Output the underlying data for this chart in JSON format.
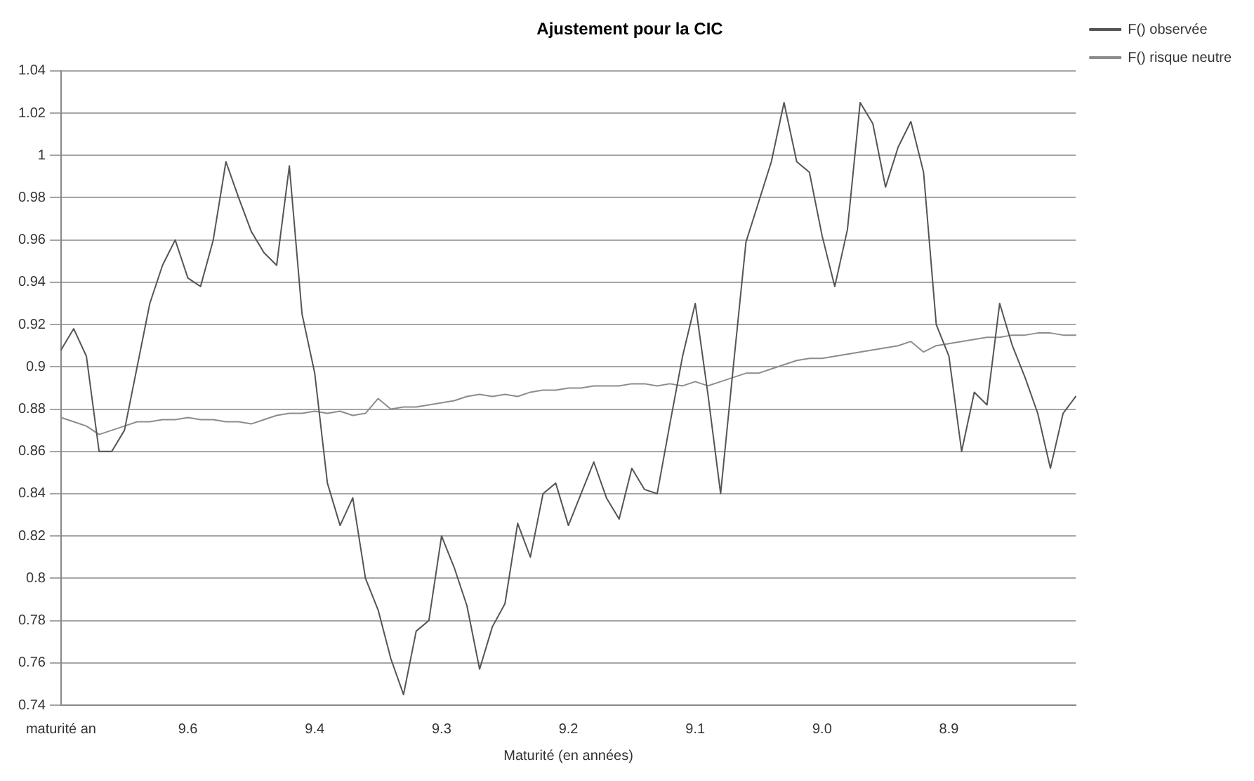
{
  "chart_data": {
    "type": "line",
    "title": "Ajustement pour la CIC",
    "xlabel": "Maturité (en années)",
    "categories": [
      "maturité an",
      null,
      null,
      null,
      null,
      null,
      null,
      null,
      null,
      null,
      "9.6",
      null,
      null,
      null,
      null,
      null,
      null,
      null,
      null,
      null,
      "9.4",
      null,
      null,
      null,
      null,
      null,
      null,
      null,
      null,
      null,
      "9.3",
      null,
      null,
      null,
      null,
      null,
      null,
      null,
      null,
      null,
      "9.2",
      null,
      null,
      null,
      null,
      null,
      null,
      null,
      null,
      null,
      "9.1",
      null,
      null,
      null,
      null,
      null,
      null,
      null,
      null,
      null,
      "9.0",
      null,
      null,
      null,
      null,
      null,
      null,
      null,
      null,
      null,
      "8.9",
      null,
      null,
      null,
      null,
      null,
      null,
      null,
      null,
      null,
      null
    ],
    "ylim": [
      0.74,
      1.04
    ],
    "yticks": [
      0.74,
      0.76,
      0.78,
      0.8,
      0.82,
      0.84,
      0.86,
      0.88,
      0.9,
      0.92,
      0.94,
      0.96,
      0.98,
      1,
      1.02,
      1.04
    ],
    "grid": "y",
    "legend": "top right",
    "marker": "none",
    "line_style": "solid",
    "series": [
      {
        "name": "F() observée",
        "color": "#555555",
        "values": [
          0.908,
          0.918,
          0.905,
          0.86,
          0.86,
          0.87,
          0.9,
          0.93,
          0.948,
          0.96,
          0.942,
          0.938,
          0.96,
          0.997,
          0.98,
          0.964,
          0.954,
          0.948,
          0.995,
          0.925,
          0.897,
          0.845,
          0.825,
          0.838,
          0.8,
          0.785,
          0.762,
          0.745,
          0.775,
          0.78,
          0.82,
          0.805,
          0.787,
          0.757,
          0.777,
          0.788,
          0.826,
          0.81,
          0.84,
          0.845,
          0.825,
          0.84,
          0.855,
          0.838,
          0.828,
          0.852,
          0.842,
          0.84,
          0.873,
          0.905,
          0.93,
          0.887,
          0.84,
          0.9,
          0.959,
          0.978,
          0.997,
          1.025,
          0.997,
          0.992,
          0.962,
          0.938,
          0.965,
          1.025,
          1.015,
          0.985,
          1.004,
          1.016,
          0.992,
          0.92,
          0.905,
          0.86,
          0.888,
          0.882,
          0.93,
          0.91,
          0.895,
          0.878,
          0.852,
          0.878,
          0.886
        ]
      },
      {
        "name": "F() risque neutre",
        "color": "#8c8c8c",
        "values": [
          0.876,
          0.874,
          0.872,
          0.868,
          0.87,
          0.872,
          0.874,
          0.874,
          0.875,
          0.875,
          0.876,
          0.875,
          0.875,
          0.874,
          0.874,
          0.873,
          0.875,
          0.877,
          0.878,
          0.878,
          0.879,
          0.878,
          0.879,
          0.877,
          0.878,
          0.885,
          0.88,
          0.881,
          0.881,
          0.882,
          0.883,
          0.884,
          0.886,
          0.887,
          0.886,
          0.887,
          0.886,
          0.888,
          0.889,
          0.889,
          0.89,
          0.89,
          0.891,
          0.891,
          0.891,
          0.892,
          0.892,
          0.891,
          0.892,
          0.891,
          0.893,
          0.891,
          0.893,
          0.895,
          0.897,
          0.897,
          0.899,
          0.901,
          0.903,
          0.904,
          0.904,
          0.905,
          0.906,
          0.907,
          0.908,
          0.909,
          0.91,
          0.912,
          0.907,
          0.91,
          0.911,
          0.912,
          0.913,
          0.914,
          0.914,
          0.915,
          0.915,
          0.916,
          0.916,
          0.915,
          0.915
        ]
      }
    ]
  }
}
